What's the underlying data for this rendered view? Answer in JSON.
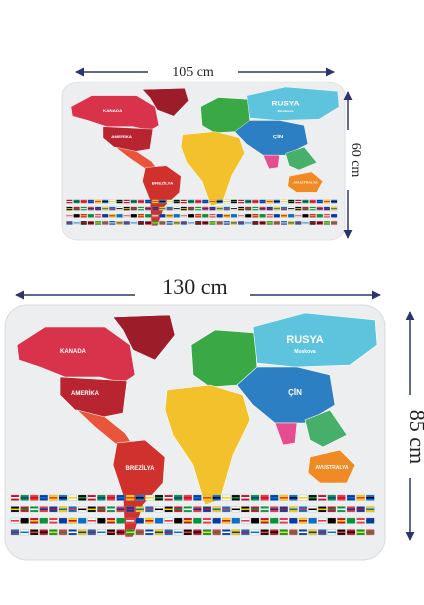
{
  "dimensions": {
    "small_width": "105 cm",
    "small_height": "60 cm",
    "large_width": "130 cm",
    "large_height": "85 cm"
  },
  "map_labels": {
    "russia": "RUSYA",
    "moscow": "Moskova",
    "canada": "KANADA",
    "america": "AMERİKA",
    "brazil": "BREZİLYA",
    "china": "ÇİN",
    "australia": "AVUSTRALYA"
  }
}
